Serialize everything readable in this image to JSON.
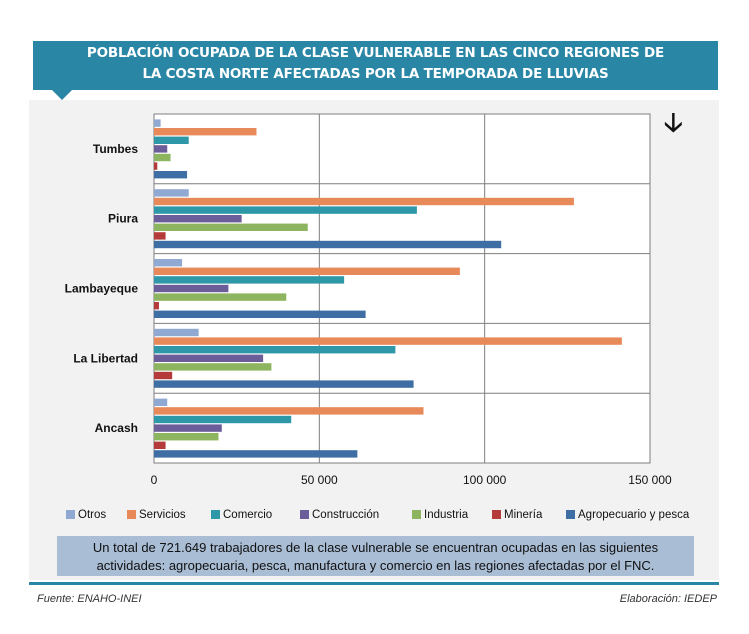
{
  "header": {
    "title_line1": "Población ocupada de la clase vulnerable en las cinco regiones de",
    "title_line2": "la costa norte afectadas por la temporada de lluvias"
  },
  "colors": {
    "Otros": "#8fa9d3",
    "Servicios": "#e8895a",
    "Comercio": "#2e97a8",
    "Construcción": "#6b5c9a",
    "Industria": "#8db55f",
    "Minería": "#b53b3b",
    "Agropecuario y pesca": "#3e6ea3"
  },
  "chart_data": {
    "type": "bar",
    "orientation": "horizontal",
    "categories": [
      "Tumbes",
      "Piura",
      "Lambayeque",
      "La Libertad",
      "Ancash"
    ],
    "xlim": [
      0,
      150000
    ],
    "xticks": [
      0,
      50000,
      100000,
      150000
    ],
    "xtick_labels": [
      "0",
      "50 000",
      "100 000",
      "150 000"
    ],
    "grid": true,
    "legend_position": "bottom",
    "series": [
      {
        "name": "Otros",
        "values": [
          2000,
          10500,
          8500,
          13500,
          4000
        ]
      },
      {
        "name": "Servicios",
        "values": [
          31000,
          127000,
          92500,
          141500,
          81500
        ]
      },
      {
        "name": "Comercio",
        "values": [
          10500,
          79500,
          57500,
          73000,
          41500
        ]
      },
      {
        "name": "Construcción",
        "values": [
          4000,
          26500,
          22500,
          33000,
          20500
        ]
      },
      {
        "name": "Industria",
        "values": [
          5000,
          46500,
          40000,
          35500,
          19500
        ]
      },
      {
        "name": "Minería",
        "values": [
          1000,
          3500,
          1500,
          5500,
          3500
        ]
      },
      {
        "name": "Agropecuario y pesca",
        "values": [
          10000,
          105000,
          64000,
          78500,
          61500
        ]
      }
    ]
  },
  "legend": {
    "items": [
      "Otros",
      "Servicios",
      "Comercio",
      "Construcción",
      "Industria",
      "Minería",
      "Agropecuario y pesca"
    ]
  },
  "note": "Un total de 721.649 trabajadores de la clase vulnerable se encuentran ocupadas en las siguientes actividades: agropecuaria, pesca, manufactura y comercio en las regiones afectadas por el FNC.",
  "footer": {
    "source": "Fuente: ENAHO-INEI",
    "credit": "Elaboración: IEDEP"
  }
}
